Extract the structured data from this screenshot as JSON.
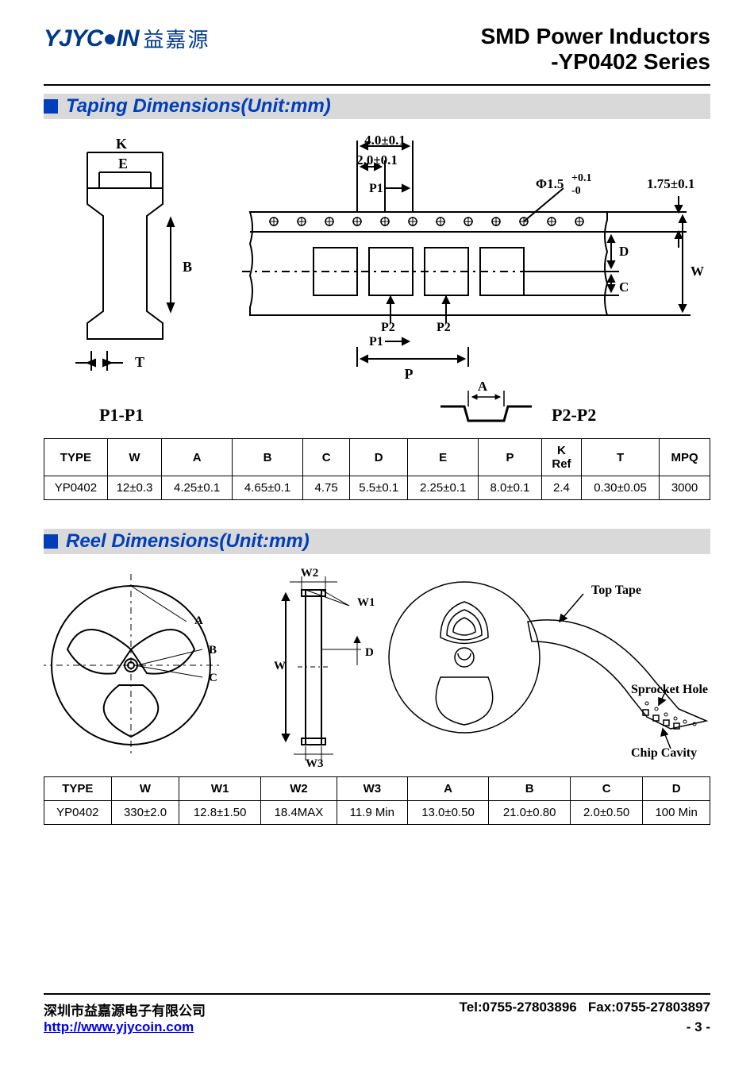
{
  "header": {
    "logo_text": "YJYC●IN",
    "logo_cn": "益嘉源",
    "title_line1": "SMD Power Inductors",
    "title_line2": "-YP0402 Series"
  },
  "section1": {
    "title": "Taping Dimensions(Unit:mm)",
    "diagram": {
      "labels": {
        "K": "K",
        "E": "E",
        "B": "B",
        "T": "T",
        "P1P1": "P1-P1",
        "top_dim1": "4.0±0.1",
        "top_dim2": "2.0±0.1",
        "P1": "P1",
        "hole": "Φ1.5",
        "hole_tol_top": "+0.1",
        "hole_tol_bot": "-0",
        "right_dim": "1.75±0.1",
        "D": "D",
        "W": "W",
        "C": "C",
        "P2": "P2",
        "P": "P",
        "A": "A",
        "P2P2": "P2-P2"
      }
    },
    "table": {
      "columns": [
        "TYPE",
        "W",
        "A",
        "B",
        "C",
        "D",
        "E",
        "P",
        "K Ref",
        "T",
        "MPQ"
      ],
      "rows": [
        [
          "YP0402",
          "12±0.3",
          "4.25±0.1",
          "4.65±0.1",
          "4.75",
          "5.5±0.1",
          "2.25±0.1",
          "8.0±0.1",
          "2.4",
          "0.30±0.05",
          "3000"
        ]
      ],
      "col_widths": [
        "70",
        "60",
        "78",
        "78",
        "52",
        "64",
        "78",
        "70",
        "44",
        "86",
        "56"
      ]
    }
  },
  "section2": {
    "title": "Reel Dimensions(Unit:mm)",
    "diagram": {
      "labels": {
        "W2": "W2",
        "W1": "W1",
        "W": "W",
        "D": "D",
        "W3": "W3",
        "A": "A",
        "B": "B",
        "C": "C",
        "TopTape": "Top Tape",
        "Sprocket": "Sprocket Hole",
        "Chip": "Chip Cavity"
      }
    },
    "table": {
      "columns": [
        "TYPE",
        "W",
        "W1",
        "W2",
        "W3",
        "A",
        "B",
        "C",
        "D"
      ],
      "rows": [
        [
          "YP0402",
          "330±2.0",
          "12.8±1.50",
          "18.4MAX",
          "11.9 Min",
          "13.0±0.50",
          "21.0±0.80",
          "2.0±0.50",
          "100 Min"
        ]
      ]
    }
  },
  "footer": {
    "company": "深圳市益嘉源电子有限公司",
    "tel": "Tel:0755-27803896",
    "fax": "Fax:0755-27803897",
    "url": "http://www.yjycoin.com",
    "page": "- 3 -"
  },
  "colors": {
    "brand": "#003a8c",
    "heading": "#003eba",
    "section_bg": "#d9d9d9",
    "line": "#000000"
  }
}
